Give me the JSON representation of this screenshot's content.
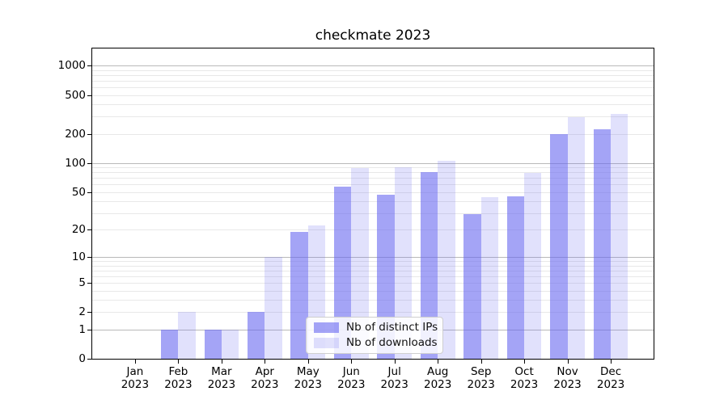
{
  "title": "checkmate 2023",
  "legend": {
    "items": [
      {
        "label": "Nb of distinct IPs",
        "color": "rgba(104,104,240,0.60)"
      },
      {
        "label": "Nb of downloads",
        "color": "rgba(104,104,240,0.20)"
      }
    ],
    "position": "lower center"
  },
  "colors": {
    "bar_base": "#6868f0",
    "ips_fill": "rgba(104,104,240,0.60)",
    "downloads_fill": "rgba(104,104,240,0.20)",
    "grid_major": "#b9b9b9",
    "grid_minor": "#e8e8e8",
    "spine": "#000000"
  },
  "chart_data": {
    "type": "bar",
    "title": "checkmate 2023",
    "xlabel": "",
    "ylabel": "",
    "categories": [
      "Jan 2023",
      "Feb 2023",
      "Mar 2023",
      "Apr 2023",
      "May 2023",
      "Jun 2023",
      "Jul 2023",
      "Aug 2023",
      "Sep 2023",
      "Oct 2023",
      "Nov 2023",
      "Dec 2023"
    ],
    "series": [
      {
        "name": "Nb of distinct IPs",
        "color": "rgba(104,104,240,0.60)",
        "values": [
          0,
          1,
          1,
          2,
          19,
          57,
          47,
          80,
          29,
          45,
          199,
          222
        ]
      },
      {
        "name": "Nb of downloads",
        "color": "rgba(104,104,240,0.20)",
        "values": [
          0,
          2,
          1,
          10,
          22,
          88,
          90,
          105,
          44,
          79,
          295,
          322
        ]
      }
    ],
    "yscale": "log1p",
    "ylim": [
      0,
      1500
    ],
    "y_tick_values": [
      0,
      1,
      2,
      5,
      10,
      20,
      50,
      100,
      200,
      500,
      1000
    ],
    "y_tick_labels": [
      "0",
      "1",
      "2",
      "5",
      "10",
      "20",
      "50",
      "100",
      "200",
      "500",
      "1000"
    ],
    "y_major_gridlines": [
      1,
      10,
      100,
      1000
    ],
    "y_minor_gridlines": [
      2,
      3,
      4,
      5,
      6,
      7,
      8,
      9,
      20,
      30,
      40,
      50,
      60,
      70,
      80,
      90,
      200,
      300,
      400,
      500,
      600,
      700,
      800,
      900
    ],
    "grid": true,
    "legend_position": "lower center",
    "bar_group_width_fraction": 0.8
  }
}
